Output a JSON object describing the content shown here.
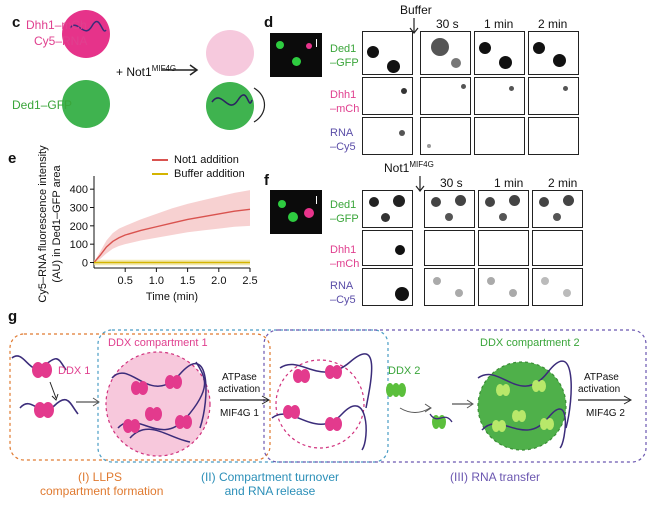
{
  "panel_c": {
    "label": "c",
    "dhh1": "Dhh1–mCh",
    "cy5": "Cy5–RNA",
    "plus": "+ Not1",
    "plus_sup": "MIF4G",
    "ded1": "Ded1–GFP"
  },
  "panel_d": {
    "label": "d",
    "treatment": "Buffer",
    "times": [
      "30 s",
      "1 min",
      "2 min"
    ],
    "rows": [
      {
        "line1": "Ded1",
        "line2": "–GFP",
        "color": "#3aa53a"
      },
      {
        "line1": "Dhh1",
        "line2": "–mCh",
        "color": "#e0408f"
      },
      {
        "line1": "RNA",
        "line2": "–Cy5",
        "color": "#5b4ea8"
      }
    ]
  },
  "panel_f": {
    "label": "f",
    "treatment": "Not1",
    "treatment_sup": "MIF4G",
    "times": [
      "30 s",
      "1 min",
      "2 min"
    ],
    "rows": [
      {
        "line1": "Ded1",
        "line2": "–GFP",
        "color": "#3aa53a"
      },
      {
        "line1": "Dhh1",
        "line2": "–mCh",
        "color": "#e0408f"
      },
      {
        "line1": "RNA",
        "line2": "–Cy5",
        "color": "#5b4ea8"
      }
    ]
  },
  "panel_e": {
    "label": "e",
    "legend": [
      "Not1 addition",
      "Buffer addition"
    ]
  },
  "chart_data": {
    "type": "line",
    "xlabel": "Time (min)",
    "ylabel_line1": "Cy5–RNA fluorescence intensity",
    "ylabel_line2": "(AU) in Ded1–GFP area",
    "xlim": [
      0,
      2.5
    ],
    "ylim": [
      -30,
      450
    ],
    "xticks": [
      0.5,
      1.0,
      1.5,
      2.0,
      2.5
    ],
    "yticks": [
      0,
      100,
      200,
      300,
      400
    ],
    "series": [
      {
        "name": "Not1 addition",
        "color": "#d9534f",
        "band": "#f5c6c6",
        "x": [
          0,
          0.1,
          0.2,
          0.3,
          0.4,
          0.5,
          0.75,
          1.0,
          1.25,
          1.5,
          1.75,
          2.0,
          2.25,
          2.5
        ],
        "y": [
          0,
          40,
          85,
          115,
          135,
          150,
          175,
          195,
          215,
          235,
          250,
          265,
          280,
          290
        ],
        "lo": [
          0,
          20,
          50,
          75,
          90,
          100,
          120,
          135,
          150,
          165,
          175,
          185,
          195,
          200
        ],
        "hi": [
          0,
          60,
          120,
          160,
          185,
          200,
          235,
          265,
          295,
          320,
          340,
          360,
          380,
          395
        ]
      },
      {
        "name": "Buffer addition",
        "color": "#d4b400",
        "band": "#efe3a0",
        "x": [
          0,
          0.5,
          1.0,
          1.5,
          2.0,
          2.5
        ],
        "y": [
          0,
          0,
          0,
          0,
          0,
          0
        ],
        "lo": [
          -15,
          -15,
          -15,
          -15,
          -15,
          -15
        ],
        "hi": [
          15,
          15,
          15,
          15,
          15,
          15
        ]
      }
    ]
  },
  "panel_g": {
    "label": "g",
    "ddx1": "DDX 1",
    "ddx_comp1": "DDX compartment 1",
    "atpase1_l1": "ATPase",
    "atpase1_l2": "activation",
    "mif4g1": "MIF4G 1",
    "ddx2": "DDX 2",
    "ddx_comp2": "DDX compartment 2",
    "atpase2_l1": "ATPase",
    "atpase2_l2": "activation",
    "mif4g2": "MIF4G 2",
    "stage1_l1": "(I) LLPS",
    "stage1_l2": "compartment formation",
    "stage2_l1": "(II) Compartment turnover",
    "stage2_l2": "and RNA release",
    "stage3": "(III) RNA transfer"
  }
}
